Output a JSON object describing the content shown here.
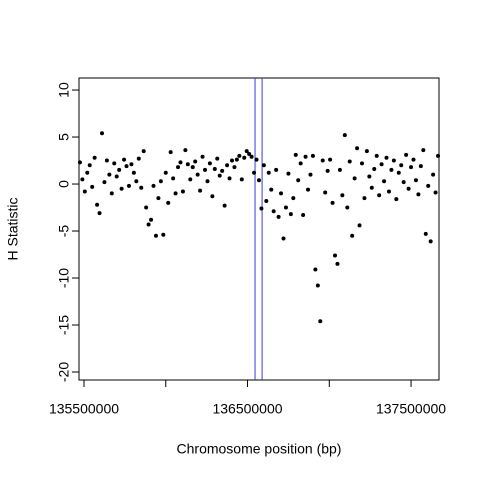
{
  "chart_data": {
    "type": "scatter",
    "xlabel": "Chromosome position (bp)",
    "ylabel": "H Statistic",
    "color": "#000000",
    "x": [
      135475000,
      135490000,
      135505000,
      135520000,
      135535000,
      135550000,
      135565000,
      135580000,
      135595000,
      135610000,
      135625000,
      135640000,
      135655000,
      135670000,
      135685000,
      135700000,
      135715000,
      135730000,
      135745000,
      135760000,
      135775000,
      135790000,
      135805000,
      135820000,
      135835000,
      135850000,
      135865000,
      135880000,
      135895000,
      135910000,
      135925000,
      135940000,
      135955000,
      135970000,
      135985000,
      136000000,
      136015000,
      136030000,
      136045000,
      136060000,
      136075000,
      136090000,
      136105000,
      136120000,
      136135000,
      136150000,
      136165000,
      136180000,
      136195000,
      136210000,
      136225000,
      136240000,
      136255000,
      136270000,
      136285000,
      136300000,
      136315000,
      136330000,
      136345000,
      136360000,
      136375000,
      136390000,
      136405000,
      136420000,
      136435000,
      136450000,
      136465000,
      136480000,
      136495000,
      136510000,
      136525000,
      136540000,
      136555000,
      136570000,
      136585000,
      136600000,
      136615000,
      136630000,
      136645000,
      136660000,
      136675000,
      136690000,
      136705000,
      136720000,
      136735000,
      136750000,
      136765000,
      136780000,
      136795000,
      136810000,
      136825000,
      136840000,
      136855000,
      136870000,
      136885000,
      136900000,
      136915000,
      136930000,
      136945000,
      136960000,
      136975000,
      136990000,
      137005000,
      137020000,
      137035000,
      137050000,
      137065000,
      137080000,
      137095000,
      137110000,
      137125000,
      137140000,
      137155000,
      137170000,
      137185000,
      137200000,
      137215000,
      137230000,
      137245000,
      137260000,
      137275000,
      137290000,
      137305000,
      137320000,
      137335000,
      137350000,
      137365000,
      137380000,
      137395000,
      137410000,
      137425000,
      137440000,
      137455000,
      137470000,
      137485000,
      137500000,
      137515000,
      137530000,
      137545000,
      137560000,
      137575000,
      137590000,
      137605000,
      137620000,
      137635000,
      137650000,
      137665000
    ],
    "values": [
      2.3,
      0.5,
      -0.8,
      1.2,
      2.0,
      -0.3,
      2.8,
      -2.2,
      -3.1,
      5.4,
      0.2,
      2.5,
      1.0,
      -1.0,
      2.2,
      0.8,
      1.5,
      -0.5,
      2.6,
      1.9,
      -0.2,
      2.1,
      1.2,
      0.3,
      2.7,
      -0.4,
      3.5,
      -2.5,
      -4.3,
      -3.8,
      -0.2,
      -5.5,
      -1.5,
      0.3,
      -5.4,
      1.2,
      -2.0,
      3.4,
      0.6,
      -1.0,
      1.8,
      2.3,
      -0.8,
      3.6,
      2.1,
      0.5,
      1.8,
      2.4,
      1.0,
      -0.7,
      2.9,
      1.5,
      0.3,
      2.2,
      -1.3,
      1.6,
      2.7,
      0.9,
      1.4,
      -2.3,
      2.0,
      0.6,
      2.5,
      1.8,
      2.6,
      3.0,
      0.5,
      2.8,
      3.5,
      3.2,
      2.9,
      1.2,
      2.6,
      0.4,
      -2.6,
      2.0,
      -1.8,
      1.2,
      -0.6,
      -2.9,
      1.5,
      -3.5,
      -1.0,
      -5.8,
      -2.5,
      1.1,
      -3.2,
      -1.5,
      3.1,
      0.4,
      2.2,
      -3.3,
      2.9,
      -0.6,
      1.0,
      3.0,
      -9.1,
      -10.8,
      -14.6,
      2.5,
      -0.9,
      1.4,
      2.6,
      -2.0,
      -7.6,
      -8.5,
      1.5,
      -1.2,
      5.2,
      -2.5,
      2.4,
      -5.5,
      0.6,
      3.8,
      -4.4,
      2.2,
      -1.5,
      3.5,
      0.8,
      -0.4,
      1.6,
      3.0,
      -1.2,
      2.1,
      0.3,
      2.8,
      -0.8,
      1.5,
      2.5,
      -1.6,
      1.2,
      2.0,
      0.2,
      3.1,
      -0.5,
      1.8,
      2.6,
      0.4,
      -1.1,
      1.9,
      3.6,
      -5.3,
      -0.2,
      -6.1,
      1.0,
      -0.9,
      3.0
    ],
    "xlim": [
      135469400,
      137671000
    ],
    "ylim": [
      -20.85,
      11.28
    ],
    "xticks": [
      135500000,
      {
        "value": 136000000,
        "label": null
      },
      136500000,
      {
        "value": 137000000,
        "label": null
      },
      137500000
    ],
    "yticks": [
      10,
      5,
      0,
      -5,
      -10,
      -15,
      -20
    ],
    "vlines": [
      136546000,
      136589000
    ],
    "vline_color": "#3b3bd6",
    "grid": false
  }
}
